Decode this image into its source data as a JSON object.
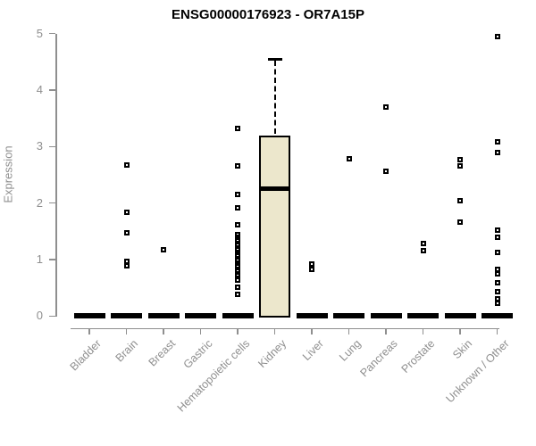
{
  "title": "ENSG00000176923 - OR7A15P",
  "y_axis": {
    "label": "Expression",
    "tick_labels": [
      "0",
      "1",
      "2",
      "3",
      "4",
      "5"
    ]
  },
  "colors": {
    "title": "#000000",
    "axis": "#8f8f8f",
    "box_fill": "#ECE7CC",
    "box_border": "#000000",
    "point": "#000000"
  },
  "chart_data": {
    "type": "boxplot",
    "title": "ENSG00000176923 - OR7A15P",
    "xlabel": "",
    "ylabel": "Expression",
    "ylim": [
      0,
      5
    ],
    "y_ticks": [
      0,
      1,
      2,
      3,
      4,
      5
    ],
    "grid": false,
    "legend": false,
    "categories": [
      "Bladder",
      "Brain",
      "Breast",
      "Gastric",
      "Hematopoietic cells",
      "Kidney",
      "Liver",
      "Lung",
      "Pancreas",
      "Prostate",
      "Skin",
      "Unknown / Other"
    ],
    "boxes": [
      {
        "category": "Bladder",
        "q1": 0,
        "median": 0,
        "q3": 0,
        "whisker_low": 0,
        "whisker_high": 0,
        "outliers": []
      },
      {
        "category": "Brain",
        "q1": 0,
        "median": 0,
        "q3": 0,
        "whisker_low": 0,
        "whisker_high": 0,
        "outliers": [
          2.67,
          1.84,
          1.47,
          0.97,
          0.89
        ]
      },
      {
        "category": "Breast",
        "q1": 0,
        "median": 0,
        "q3": 0,
        "whisker_low": 0,
        "whisker_high": 0,
        "outliers": [
          1.17
        ]
      },
      {
        "category": "Gastric",
        "q1": 0,
        "median": 0,
        "q3": 0,
        "whisker_low": 0,
        "whisker_high": 0,
        "outliers": []
      },
      {
        "category": "Hematopoietic cells",
        "q1": 0,
        "median": 0,
        "q3": 0,
        "whisker_low": 0,
        "whisker_high": 0,
        "outliers": [
          3.32,
          2.66,
          2.15,
          1.92,
          1.62,
          1.44,
          1.4,
          1.36,
          1.33,
          1.29,
          1.25,
          1.21,
          1.17,
          1.13,
          1.1,
          1.06,
          1.02,
          0.98,
          0.94,
          0.9,
          0.87,
          0.83,
          0.79,
          0.75,
          0.71,
          0.67,
          0.64,
          0.51,
          0.38
        ]
      },
      {
        "category": "Kidney",
        "q1": 0,
        "median": 2.25,
        "q3": 3.2,
        "whisker_low": 0,
        "whisker_high": 4.55,
        "outliers": []
      },
      {
        "category": "Liver",
        "q1": 0,
        "median": 0,
        "q3": 0,
        "whisker_low": 0,
        "whisker_high": 0,
        "outliers": [
          0.92,
          0.83
        ]
      },
      {
        "category": "Lung",
        "q1": 0,
        "median": 0,
        "q3": 0,
        "whisker_low": 0,
        "whisker_high": 0,
        "outliers": [
          2.78
        ]
      },
      {
        "category": "Pancreas",
        "q1": 0,
        "median": 0,
        "q3": 0,
        "whisker_low": 0,
        "whisker_high": 0,
        "outliers": [
          3.7,
          2.57
        ]
      },
      {
        "category": "Prostate",
        "q1": 0,
        "median": 0,
        "q3": 0,
        "whisker_low": 0,
        "whisker_high": 0,
        "outliers": [
          1.28,
          1.16
        ]
      },
      {
        "category": "Skin",
        "q1": 0,
        "median": 0,
        "q3": 0,
        "whisker_low": 0,
        "whisker_high": 0,
        "outliers": [
          2.77,
          2.66,
          2.04,
          1.66
        ]
      },
      {
        "category": "Unknown / Other",
        "q1": 0,
        "median": 0,
        "q3": 0,
        "whisker_low": 0,
        "whisker_high": 0,
        "outliers": [
          4.95,
          3.09,
          2.9,
          1.52,
          1.39,
          1.13,
          0.83,
          0.75,
          0.59,
          0.43,
          0.31,
          0.23
        ]
      }
    ]
  }
}
